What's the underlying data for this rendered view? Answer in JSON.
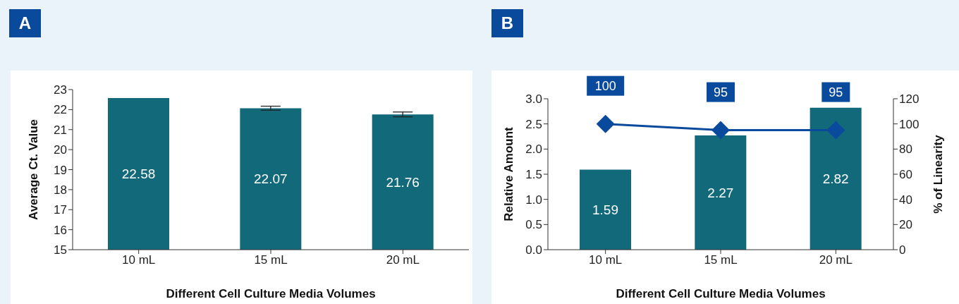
{
  "chart_data": [
    {
      "type": "bar",
      "title": "A",
      "xlabel": "Different Cell Culture Media Volumes",
      "ylabel": "Average Ct. Value",
      "categories": [
        "10 mL",
        "15 mL",
        "20 mL"
      ],
      "series": [
        {
          "color": "#11697a",
          "values": [
            22.58,
            22.07,
            21.76
          ],
          "errors": [
            null,
            0.1,
            0.12
          ]
        }
      ],
      "ylim": [
        15,
        23
      ],
      "yticks": [
        15,
        16,
        17,
        18,
        19,
        20,
        21,
        22,
        23
      ],
      "data_labels": true,
      "grid": false,
      "legend": false
    },
    {
      "type": "bar",
      "title": "B",
      "xlabel": "Different Cell Culture Media Volumes",
      "ylabel": "Relative Amount",
      "y2label": "% of Linearity",
      "categories": [
        "10 mL",
        "15 mL",
        "20 mL"
      ],
      "series": [
        {
          "color": "#11697a",
          "values": [
            1.59,
            2.27,
            2.82
          ]
        },
        {
          "type": "line",
          "axis": "y2",
          "color": "#0a4a9c",
          "values": [
            100,
            95,
            95
          ]
        }
      ],
      "ylim": [
        0,
        3
      ],
      "yticks": [
        {
          "value": 0,
          "label": "0.0"
        },
        0.5,
        {
          "value": 1,
          "label": "1.0"
        },
        1.5,
        {
          "value": 2,
          "label": "2.0"
        },
        2.5,
        {
          "value": 3,
          "label": "3.0"
        }
      ],
      "y2lim": [
        0,
        120
      ],
      "y2ticks": [
        0,
        20,
        40,
        60,
        80,
        100,
        120
      ],
      "marker": "diamond",
      "data_labels": true,
      "grid": false,
      "legend": false
    }
  ]
}
